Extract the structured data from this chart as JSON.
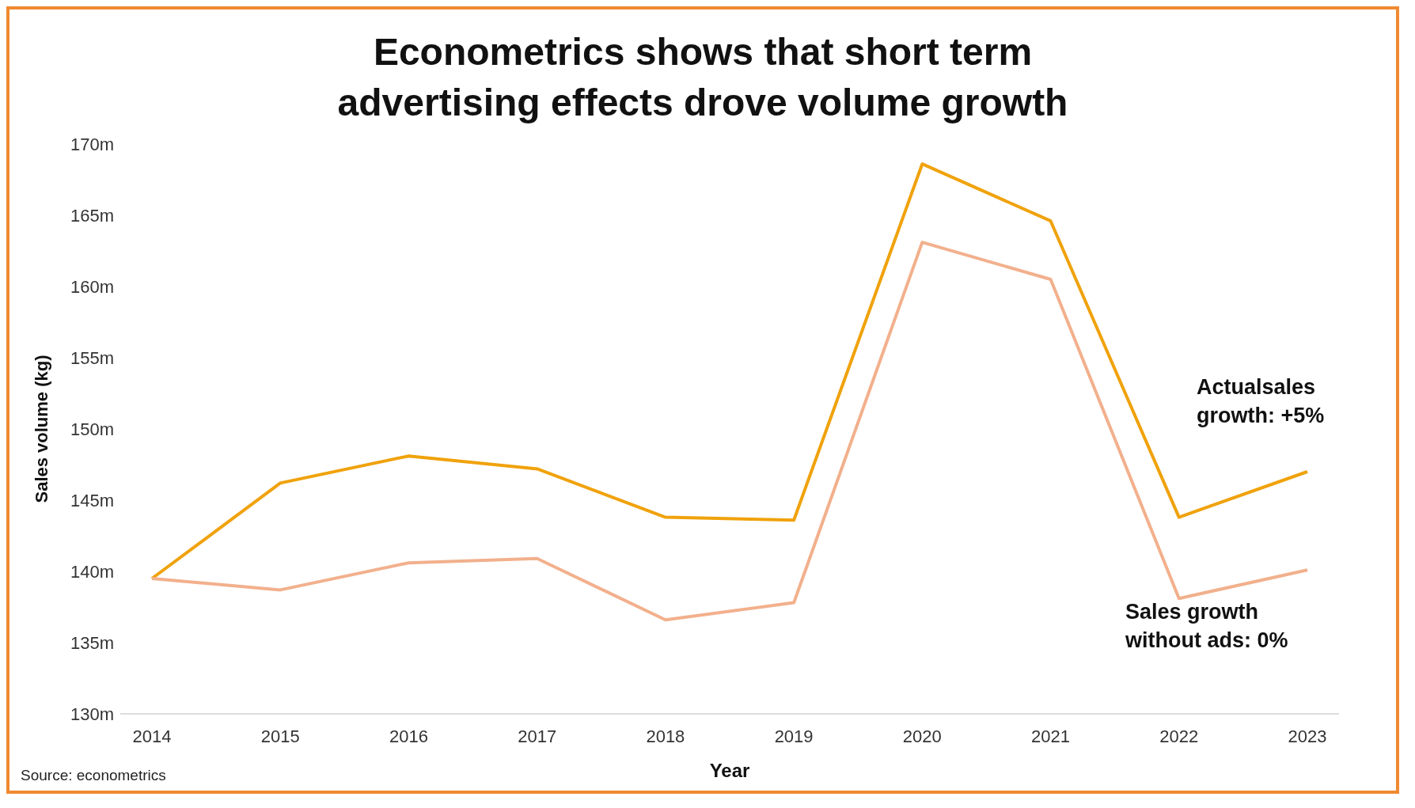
{
  "chart_data": {
    "type": "line",
    "title": "Econometrics shows that short term advertising effects drove volume growth",
    "xlabel": "Year",
    "ylabel": "Sales volume (kg)",
    "categories": [
      "2014",
      "2015",
      "2016",
      "2017",
      "2018",
      "2019",
      "2020",
      "2021",
      "2022",
      "2023"
    ],
    "series": [
      {
        "name": "Actualsales growth: +5%",
        "color": "#f0a20c",
        "values": [
          139.5,
          146.2,
          148.1,
          147.2,
          143.8,
          143.6,
          168.6,
          164.6,
          143.8,
          147.0
        ]
      },
      {
        "name": "Sales growth without ads: 0%",
        "color": "#f2b08c",
        "values": [
          139.5,
          138.7,
          140.6,
          140.9,
          136.6,
          137.8,
          163.1,
          160.5,
          138.1,
          140.1
        ]
      }
    ],
    "ylim": [
      130,
      170
    ],
    "yticks": [
      {
        "value": 130,
        "label": "130m"
      },
      {
        "value": 135,
        "label": "135m"
      },
      {
        "value": 140,
        "label": "140m"
      },
      {
        "value": 145,
        "label": "145m"
      },
      {
        "value": 150,
        "label": "150m"
      },
      {
        "value": 155,
        "label": "155m"
      },
      {
        "value": 160,
        "label": "160m"
      },
      {
        "value": 165,
        "label": "165m"
      },
      {
        "value": 170,
        "label": "170m"
      }
    ],
    "grid": false,
    "legend": false,
    "marker": "none",
    "line_style": "solid",
    "annotations": [
      "Source: econometrics"
    ]
  }
}
